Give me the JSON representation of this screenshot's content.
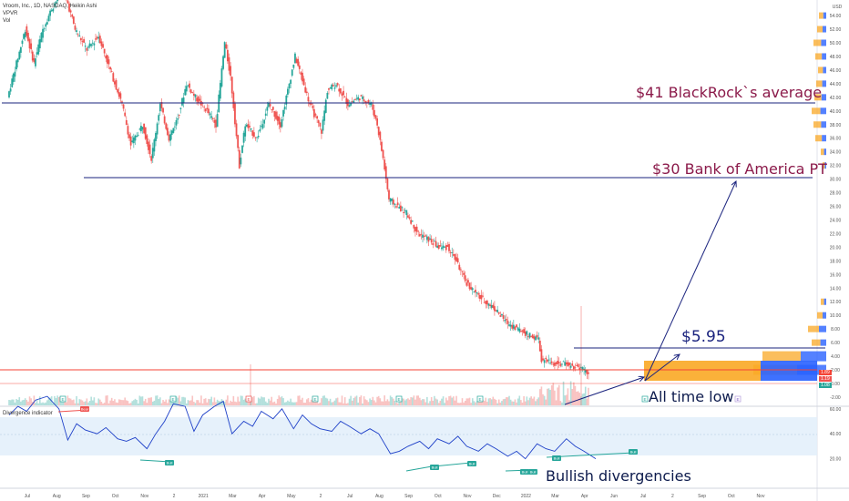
{
  "legend": {
    "symbol": "Vroom, Inc., 1D, NASDAQ, Heikin Ashi",
    "line2": "VPVR",
    "line3": "Vol"
  },
  "annotations": {
    "blackrock": "$41 BlackRock`s average",
    "bofa": "$30 Bank of America PT",
    "target": "$5.95",
    "ath": "All time low",
    "divergence": "Bullish divergencies"
  },
  "oscillator_title": "Divergence indicator",
  "price_badges": {
    "red": "1.89",
    "last": "1.19",
    "dark": "1.08"
  },
  "colors": {
    "up": "#26a69a",
    "down": "#ef5350",
    "hline": "#1a237e",
    "red_line": "#f44336",
    "vpvr_up": "#f9a825",
    "vpvr_down": "#2962ff",
    "osc_line": "#1e40c8",
    "osc_band": "#e3f0fb"
  },
  "chart_data": [
    {
      "type": "line",
      "title": "Vroom, Inc., 1D, NASDAQ, Heikin Ashi",
      "ylabel": "USD",
      "y_ticks": [
        -2.0,
        0.0,
        2.0,
        4.0,
        6.0,
        8.0,
        10.0,
        12.0,
        14.0,
        16.0,
        18.0,
        20.0,
        22.0,
        24.0,
        26.0,
        28.0,
        30.0,
        32.0,
        34.0,
        36.0,
        38.0,
        40.0,
        42.0,
        44.0,
        46.0,
        48.0,
        50.0,
        52.0,
        54.0
      ],
      "x_ticks": [
        "Jul",
        "Aug",
        "Sep",
        "Oct",
        "Nov",
        "2",
        "2021",
        "Mar",
        "Apr",
        "May",
        "2",
        "Jul",
        "Aug",
        "Sep",
        "Oct",
        "Nov",
        "Dec",
        "2022",
        "Mar",
        "Apr",
        "Jun",
        "Jul",
        "2",
        "Sep",
        "Oct",
        "Nov"
      ],
      "x_index": [
        0,
        1,
        2,
        3,
        4,
        5,
        6,
        7,
        8,
        9,
        10,
        11,
        12,
        13,
        14,
        15,
        16,
        17,
        18,
        19,
        20,
        21,
        22,
        23,
        24,
        25,
        26,
        27
      ],
      "x_index_note": "months since Jul 2020",
      "price_path": [
        [
          0.0,
          42
        ],
        [
          0.3,
          47
        ],
        [
          0.6,
          52
        ],
        [
          0.9,
          47
        ],
        [
          1.2,
          52
        ],
        [
          1.5,
          55
        ],
        [
          1.9,
          58
        ],
        [
          2.3,
          52
        ],
        [
          2.7,
          49
        ],
        [
          3.1,
          51
        ],
        [
          3.5,
          46
        ],
        [
          3.9,
          41
        ],
        [
          4.2,
          35
        ],
        [
          4.6,
          38
        ],
        [
          4.9,
          33
        ],
        [
          5.2,
          41
        ],
        [
          5.5,
          36
        ],
        [
          5.8,
          39
        ],
        [
          6.1,
          44
        ],
        [
          6.4,
          42
        ],
        [
          6.8,
          40
        ],
        [
          7.1,
          38
        ],
        [
          7.4,
          50
        ],
        [
          7.6,
          45
        ],
        [
          7.9,
          32
        ],
        [
          8.1,
          38
        ],
        [
          8.5,
          36
        ],
        [
          8.9,
          41
        ],
        [
          9.3,
          38
        ],
        [
          9.8,
          48
        ],
        [
          10.3,
          41
        ],
        [
          10.7,
          37
        ],
        [
          10.9,
          43
        ],
        [
          11.2,
          44
        ],
        [
          11.6,
          41
        ],
        [
          12.0,
          42
        ],
        [
          12.4,
          41
        ],
        [
          12.6,
          38
        ],
        [
          12.8,
          33
        ],
        [
          13.0,
          27
        ],
        [
          13.3,
          26
        ],
        [
          13.6,
          25
        ],
        [
          14.0,
          22
        ],
        [
          14.4,
          21
        ],
        [
          14.7,
          20
        ],
        [
          15.0,
          20
        ],
        [
          15.3,
          18
        ],
        [
          15.6,
          15
        ],
        [
          16.0,
          13
        ],
        [
          16.3,
          12
        ],
        [
          16.6,
          11
        ],
        [
          17.0,
          9
        ],
        [
          17.4,
          8
        ],
        [
          17.8,
          7
        ],
        [
          18.1,
          6.5
        ],
        [
          18.2,
          3.5
        ],
        [
          18.5,
          3
        ],
        [
          19.0,
          2.8
        ],
        [
          19.5,
          2.3
        ],
        [
          19.8,
          1.5
        ]
      ],
      "horizontal_lines": [
        {
          "label": "$41 BlackRock`s average",
          "y": 41
        },
        {
          "label": "$30 Bank of America PT",
          "y": 30
        },
        {
          "label": "$5.95",
          "y": 5.95
        },
        {
          "label": "",
          "y": 2.5
        }
      ],
      "arrows": [
        {
          "from": [
            20.1,
            1.5
          ],
          "to": [
            23.8,
            29.4
          ]
        },
        {
          "from": [
            20.1,
            1.5
          ],
          "to": [
            21.2,
            4.5
          ]
        },
        {
          "from": [
            18.0,
            -0.5
          ],
          "to": [
            20.1,
            1.4
          ]
        }
      ],
      "price_badges": [
        1.89,
        1.19,
        1.08
      ]
    },
    {
      "type": "line",
      "title": "Divergence indicator",
      "y_ticks": [
        20.0,
        40.0,
        60.0
      ],
      "x_index_note": "months since Jul 2020",
      "band": [
        30,
        70
      ],
      "series": [
        {
          "x": [
            0.0,
            0.3,
            0.6,
            0.9,
            1.3,
            1.7,
            2.0,
            2.3,
            2.6,
            3.0,
            3.3,
            3.7,
            4.0,
            4.3,
            4.7,
            5.0,
            5.3,
            5.6,
            6.0,
            6.3,
            6.6,
            7.0,
            7.3,
            7.6,
            8.0,
            8.3,
            8.6,
            9.0,
            9.3,
            9.7,
            10.0,
            10.3,
            10.6,
            11.0,
            11.3,
            11.6,
            12.0,
            12.3,
            12.6,
            13.0,
            13.3,
            13.6,
            14.0,
            14.3,
            14.6,
            15.0,
            15.3,
            15.6,
            16.0,
            16.3,
            16.6,
            17.0,
            17.3,
            17.6,
            18.0,
            18.3,
            18.6,
            19.0,
            19.3,
            19.6,
            20.0
          ],
          "values": [
            55,
            62,
            58,
            67,
            70,
            60,
            35,
            48,
            43,
            40,
            45,
            36,
            34,
            37,
            28,
            40,
            50,
            64,
            62,
            42,
            55,
            62,
            66,
            40,
            50,
            46,
            58,
            52,
            60,
            44,
            55,
            48,
            44,
            42,
            50,
            46,
            40,
            44,
            40,
            24,
            26,
            30,
            34,
            28,
            36,
            32,
            38,
            30,
            26,
            32,
            28,
            22,
            26,
            20,
            32,
            28,
            26,
            36,
            30,
            26,
            20
          ]
        }
      ],
      "divergence_labels": [
        "Bear",
        "Bull",
        "Bull",
        "Bull",
        "Bull",
        "Bull",
        "Bull",
        "Bull"
      ]
    }
  ]
}
